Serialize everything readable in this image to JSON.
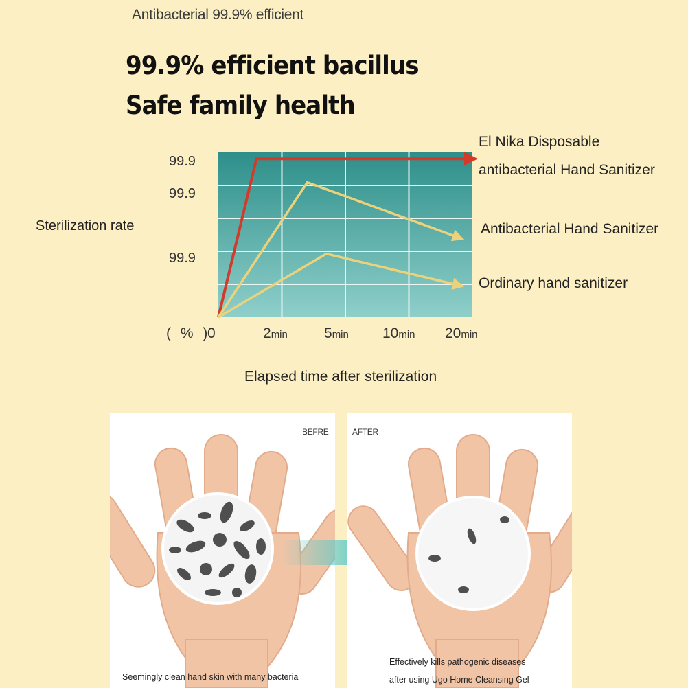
{
  "header": {
    "caption": "Antibacterial 99.9% efficient",
    "headline_line1": "99.9% efficient bacillus",
    "headline_line2": "Safe family health"
  },
  "chart_data": {
    "type": "line",
    "ylabel": "Sterilization rate",
    "xlabel": "Elapsed time after sterilization",
    "y_unit": "( % )",
    "x_ticks": [
      {
        "value": "0",
        "unit": ""
      },
      {
        "value": "2",
        "unit": "min"
      },
      {
        "value": "5",
        "unit": "min"
      },
      {
        "value": "10",
        "unit": "min"
      },
      {
        "value": "20",
        "unit": "min"
      }
    ],
    "y_ticks": [
      "99.9",
      "99.9",
      "99.9"
    ],
    "grid": true,
    "series": [
      {
        "name": "El Nika Disposable antibacterial Hand Sanitizer",
        "color": "#d23a2a",
        "points": [
          [
            0,
            0
          ],
          [
            0.6,
            99.9
          ],
          [
            4.0,
            99.9
          ]
        ]
      },
      {
        "name": "Antibacterial Hand Sanitizer",
        "color": "#ecd27a",
        "points": [
          [
            0,
            0
          ],
          [
            1.4,
            85
          ],
          [
            3.8,
            50
          ]
        ]
      },
      {
        "name": "Ordinary hand sanitizer",
        "color": "#ecd27a",
        "points": [
          [
            0,
            0
          ],
          [
            1.7,
            40
          ],
          [
            3.8,
            20
          ]
        ]
      }
    ],
    "legend": {
      "series1_line1": "El Nika Disposable",
      "series1_line2": "antibacterial Hand Sanitizer",
      "series2": "Antibacterial Hand Sanitizer",
      "series3": "Ordinary hand sanitizer"
    }
  },
  "panels": {
    "before_tag": "BEFRE",
    "after_tag": "AFTER",
    "before_caption": "Seemingly clean hand skin with many bacteria",
    "after_caption_line1": "Effectively kills pathogenic diseases",
    "after_caption_line2": "after using Ugo Home Cleansing Gel"
  },
  "colors": {
    "background": "#fcefc3",
    "plot_top": "#2e8f8a",
    "plot_bottom": "#8fcfca",
    "transfer_arrow": "#58c9c9"
  }
}
